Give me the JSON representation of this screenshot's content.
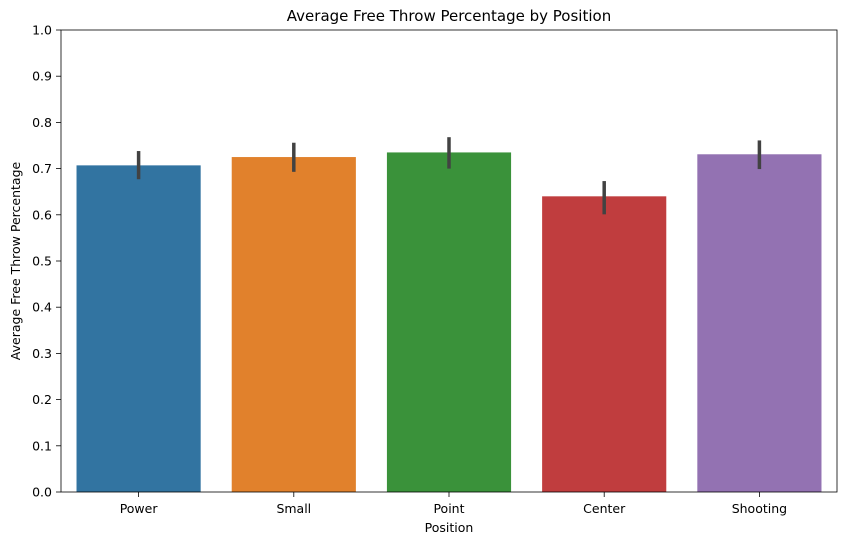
{
  "chart_data": {
    "type": "bar",
    "title": "Average Free Throw Percentage by Position",
    "xlabel": "Position",
    "ylabel": "Average Free Throw Percentage",
    "categories": [
      "Power",
      "Small",
      "Point",
      "Center",
      "Shooting"
    ],
    "values": [
      0.707,
      0.725,
      0.735,
      0.64,
      0.731
    ],
    "error_low": [
      0.677,
      0.693,
      0.7,
      0.601,
      0.699
    ],
    "error_high": [
      0.738,
      0.756,
      0.768,
      0.673,
      0.761
    ],
    "colors": [
      "#3274a1",
      "#e1812c",
      "#3a923a",
      "#c03d3e",
      "#9372b2"
    ],
    "error_color": "#424242",
    "ylim": [
      0,
      1.0
    ],
    "yticks": [
      "0.0",
      "0.1",
      "0.2",
      "0.3",
      "0.4",
      "0.5",
      "0.6",
      "0.7",
      "0.8",
      "0.9",
      "1.0"
    ],
    "grid": false,
    "legend": "none"
  }
}
